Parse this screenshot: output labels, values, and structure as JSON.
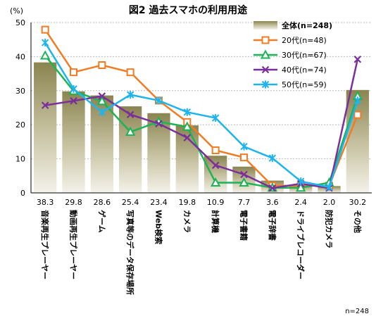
{
  "chart_data": {
    "type": "bar",
    "title": "図2 過去スマホの利用用途",
    "ylabel": "(%)",
    "ylim": [
      0,
      50
    ],
    "yticks": [
      0,
      10,
      20,
      30,
      40,
      50
    ],
    "categories": [
      "音楽再生プレーヤー",
      "動画再生プレーヤー",
      "ゲーム",
      "写真等のデータ保存場所",
      "Web検索",
      "カメラ",
      "計算機",
      "電子書籍",
      "電子辞書",
      "ドライブレコーダー",
      "防犯カメラ",
      "その他"
    ],
    "bar_series": {
      "name": "全体(n=248)",
      "values": [
        38.3,
        29.8,
        28.6,
        25.4,
        23.4,
        19.8,
        10.9,
        7.7,
        3.6,
        2.4,
        2.0,
        30.2
      ]
    },
    "series": [
      {
        "name": "20代(n=48)",
        "marker": "square",
        "color": "#f07d24",
        "values": [
          47.9,
          35.4,
          37.5,
          35.4,
          27.1,
          20.8,
          12.5,
          10.4,
          2.1,
          2.1,
          2.1,
          22.9
        ]
      },
      {
        "name": "30代(n=67)",
        "marker": "triangle",
        "color": "#1db356",
        "values": [
          40.3,
          29.9,
          26.9,
          17.9,
          20.9,
          19.4,
          3.0,
          3.0,
          1.5,
          1.5,
          3.0,
          28.4
        ]
      },
      {
        "name": "40代(n=74)",
        "marker": "x",
        "color": "#7b2f9a",
        "values": [
          25.7,
          27.0,
          28.4,
          23.0,
          20.3,
          16.2,
          8.1,
          5.4,
          1.4,
          2.7,
          1.4,
          39.2
        ]
      },
      {
        "name": "50代(n=59)",
        "marker": "star",
        "color": "#20b4ec",
        "values": [
          44.1,
          30.5,
          23.7,
          28.8,
          27.1,
          23.7,
          22.0,
          13.6,
          10.2,
          3.4,
          1.7,
          27.1
        ]
      }
    ],
    "note": "n=248",
    "legend_position": "top-right",
    "grid": true
  }
}
